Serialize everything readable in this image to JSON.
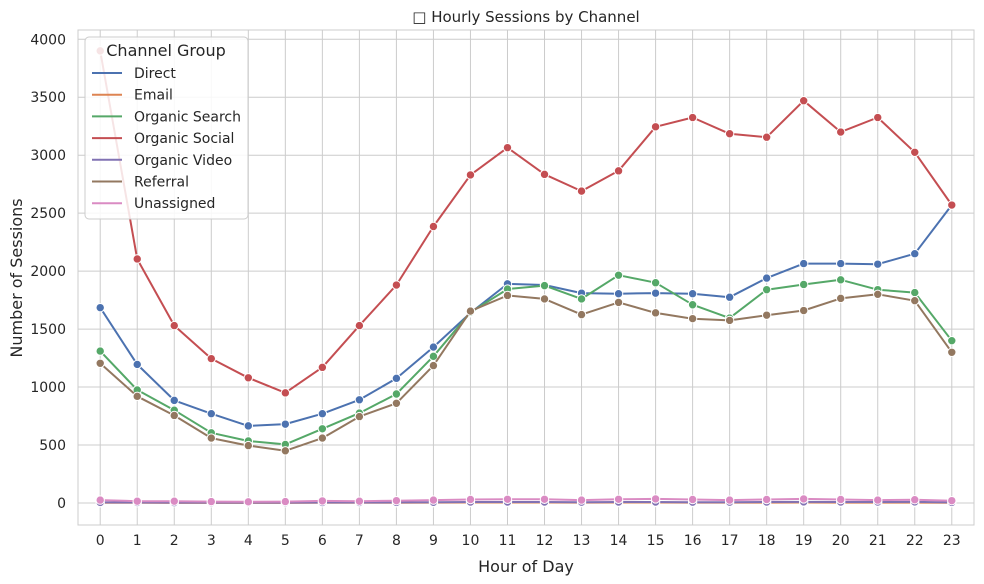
{
  "chart_data": {
    "type": "line",
    "title": "□ Hourly Sessions by Channel",
    "xlabel": "Hour of Day",
    "ylabel": "Number of Sessions",
    "x": [
      0,
      1,
      2,
      3,
      4,
      5,
      6,
      7,
      8,
      9,
      10,
      11,
      12,
      13,
      14,
      15,
      16,
      17,
      18,
      19,
      20,
      21,
      22,
      23
    ],
    "xlim": [
      -0.6,
      23.6
    ],
    "ylim": [
      -190,
      4080
    ],
    "yticks": [
      0,
      500,
      1000,
      1500,
      2000,
      2500,
      3000,
      3500,
      4000
    ],
    "grid": true,
    "legend": {
      "title": "Channel Group",
      "placement": "top-left"
    },
    "series": [
      {
        "name": "Direct",
        "color": "#4c72b0",
        "values": [
          1685,
          1195,
          885,
          770,
          665,
          680,
          770,
          890,
          1075,
          1345,
          1640,
          1890,
          1880,
          1810,
          1805,
          1810,
          1805,
          1775,
          1940,
          2065,
          2065,
          2060,
          2150,
          2570
        ]
      },
      {
        "name": "Email",
        "color": "#dd8452",
        "values": [
          2,
          2,
          1,
          1,
          1,
          1,
          2,
          2,
          2,
          3,
          4,
          4,
          4,
          3,
          4,
          4,
          3,
          3,
          3,
          4,
          3,
          3,
          3,
          2
        ]
      },
      {
        "name": "Organic Search",
        "color": "#55a868",
        "values": [
          1310,
          975,
          800,
          605,
          535,
          505,
          640,
          775,
          940,
          1265,
          1645,
          1845,
          1875,
          1760,
          1965,
          1900,
          1710,
          1595,
          1840,
          1885,
          1925,
          1840,
          1815,
          1400
        ]
      },
      {
        "name": "Organic Social",
        "color": "#c44e52",
        "values": [
          3900,
          2105,
          1530,
          1245,
          1080,
          950,
          1170,
          1530,
          1880,
          2385,
          2830,
          3065,
          2835,
          2690,
          2865,
          3245,
          3325,
          3185,
          3155,
          3470,
          3200,
          3325,
          3025,
          2570
        ]
      },
      {
        "name": "Organic Video",
        "color": "#8172b3",
        "values": [
          5,
          4,
          3,
          3,
          3,
          3,
          4,
          4,
          5,
          6,
          8,
          8,
          8,
          7,
          8,
          8,
          7,
          7,
          8,
          9,
          8,
          8,
          9,
          5
        ]
      },
      {
        "name": "Referral",
        "color": "#937860",
        "values": [
          1205,
          920,
          755,
          560,
          495,
          450,
          560,
          745,
          860,
          1185,
          1655,
          1790,
          1760,
          1625,
          1730,
          1640,
          1590,
          1575,
          1620,
          1660,
          1765,
          1800,
          1745,
          1300
        ]
      },
      {
        "name": "Unassigned",
        "color": "#da8bc3",
        "values": [
          25,
          15,
          15,
          12,
          10,
          12,
          18,
          15,
          20,
          25,
          30,
          32,
          32,
          25,
          32,
          35,
          30,
          25,
          30,
          35,
          30,
          25,
          28,
          20
        ]
      }
    ]
  }
}
